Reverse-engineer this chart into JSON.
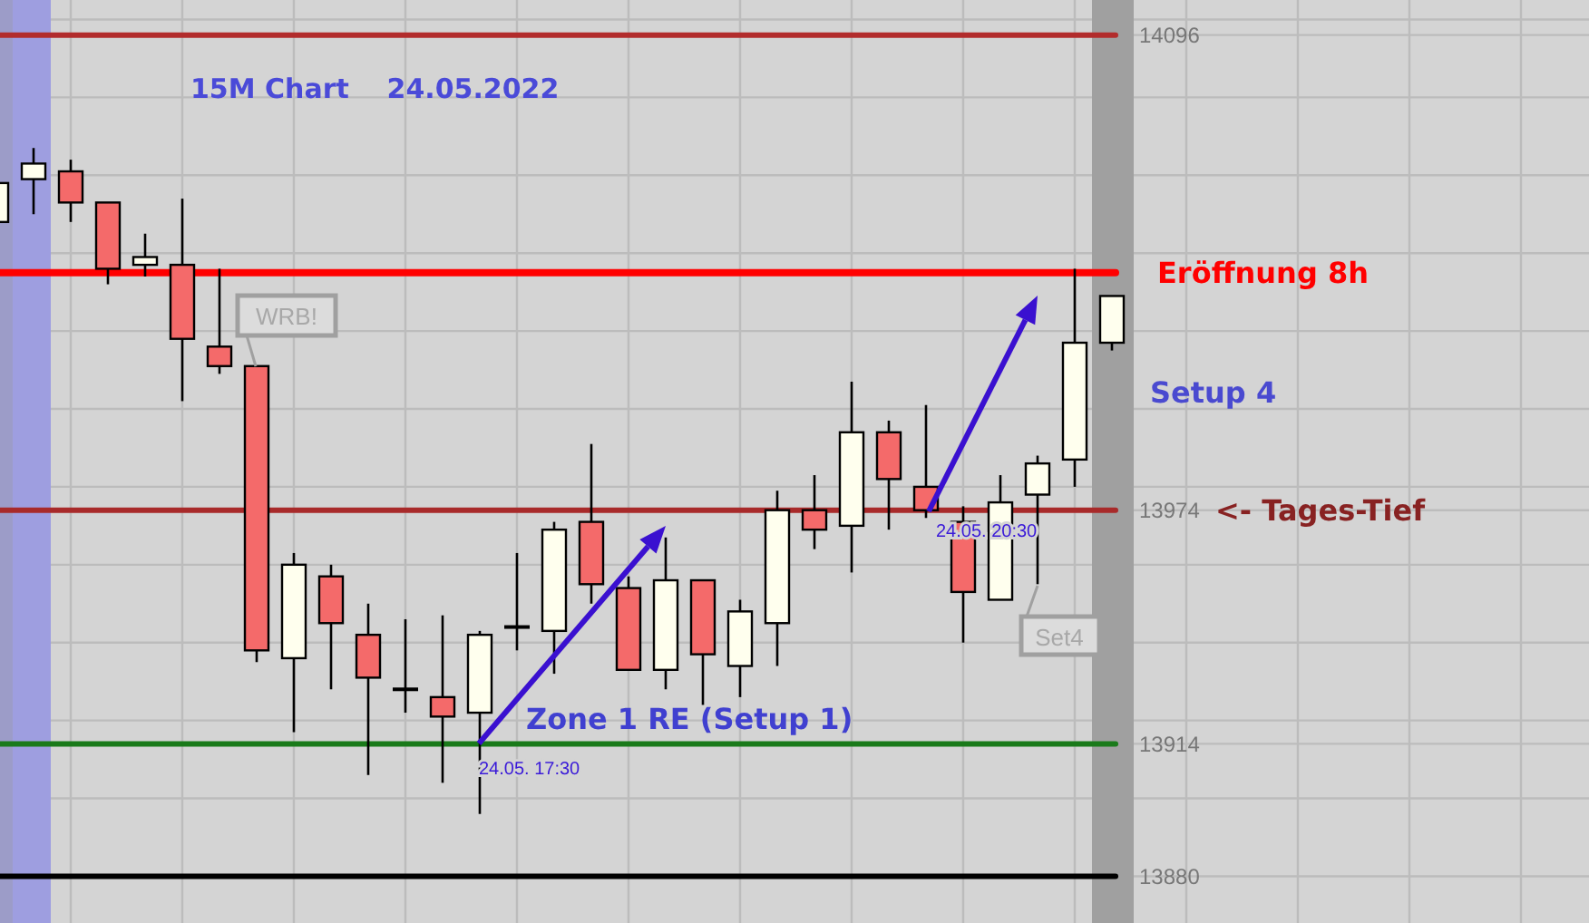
{
  "chart_data": {
    "type": "candlestick",
    "title": "15M Chart    24.05.2022",
    "categories": [
      null,
      null,
      null,
      null,
      null,
      null,
      null,
      null,
      null,
      null,
      null,
      null,
      null,
      null,
      null,
      null,
      null,
      null,
      null,
      null,
      null,
      null,
      null,
      null,
      null,
      null,
      null,
      null,
      null,
      null,
      null
    ],
    "ohlc": [
      [
        14048,
        14058,
        14048,
        14058
      ],
      [
        14059,
        14067,
        14050,
        14063
      ],
      [
        14061,
        14064,
        14048,
        14053
      ],
      [
        14053,
        14053,
        14032,
        14036
      ],
      [
        14037,
        14045,
        14034,
        14039
      ],
      [
        14037,
        14054,
        14002,
        14018
      ],
      [
        14016,
        14036,
        14009,
        14011
      ],
      [
        14011,
        14011,
        13935,
        13938
      ],
      [
        13936,
        13963,
        13917,
        13960
      ],
      [
        13957,
        13960,
        13928,
        13945
      ],
      [
        13942,
        13950,
        13906,
        13931
      ],
      [
        13928,
        13946,
        13922,
        13928
      ],
      [
        13926,
        13947,
        13904,
        13921
      ],
      [
        13922,
        13943,
        13896,
        13942
      ],
      [
        13944,
        13963,
        13938,
        13944
      ],
      [
        13943,
        13971,
        13932,
        13969
      ],
      [
        13971,
        13991,
        13950,
        13955
      ],
      [
        13954,
        13957,
        13933,
        13933
      ],
      [
        13933,
        13967,
        13928,
        13956
      ],
      [
        13956,
        13956,
        13924,
        13937
      ],
      [
        13934,
        13951,
        13926,
        13948
      ],
      [
        13945,
        13979,
        13934,
        13974
      ],
      [
        13974,
        13983,
        13964,
        13969
      ],
      [
        13970,
        14007,
        13958,
        13994
      ],
      [
        13994,
        13997,
        13969,
        13982
      ],
      [
        13980,
        14001,
        13972,
        13974
      ],
      [
        13971,
        13975,
        13940,
        13953
      ],
      [
        13951,
        13983,
        13951,
        13976
      ],
      [
        13978,
        13988,
        13955,
        13986
      ],
      [
        13987,
        14036,
        13980,
        14017
      ],
      [
        14017,
        14029,
        14015,
        14029
      ]
    ],
    "colors": [
      "#ffffee",
      "#ffffee",
      "#f46a6a",
      "#f46a6a",
      "#ffffee",
      "#f46a6a",
      "#f46a6a",
      "#f46a6a",
      "#ffffee",
      "#f46a6a",
      "#f46a6a",
      "#000000",
      "#f46a6a",
      "#ffffee",
      "#000000",
      "#ffffee",
      "#f46a6a",
      "#f46a6a",
      "#ffffee",
      "#f46a6a",
      "#ffffee",
      "#ffffee",
      "#f46a6a",
      "#ffffee",
      "#f46a6a",
      "#f46a6a",
      "#f46a6a",
      "#ffffee",
      "#ffffee",
      "#ffffee",
      "#ffffee"
    ],
    "ylim": [
      13868,
      14105
    ],
    "yticks": [
      13880,
      {
        "value": 13900,
        "label": null
      },
      13914,
      {
        "value": 13920,
        "label": null
      },
      {
        "value": 13940,
        "label": null
      },
      {
        "value": 13960,
        "label": null
      },
      13974,
      {
        "value": 13980,
        "label": null
      },
      {
        "value": 14000,
        "label": null
      },
      {
        "value": 14020,
        "label": null
      },
      {
        "value": 14040,
        "label": null
      },
      {
        "value": 14060,
        "label": null
      },
      {
        "value": 14080,
        "label": null
      },
      14096,
      {
        "value": 14100,
        "label": null
      }
    ],
    "tick_labels": "y",
    "grid": true,
    "ref_lines": [
      {
        "axis": "y",
        "value": 14096,
        "color": "#b22c2c"
      },
      {
        "axis": "y",
        "value": 14035,
        "color": "#ff0000",
        "label": "Eröffnung 8h"
      },
      {
        "axis": "y",
        "value": 13974,
        "color": "#a82a2a",
        "label": "<- Tages-Tief"
      },
      {
        "axis": "y",
        "value": 13914,
        "color": "#1a7a1a"
      },
      {
        "axis": "y",
        "value": 13880,
        "color": "#000000"
      }
    ],
    "annotations": [
      "Zone 1 RE (Setup 1)",
      "Setup 4",
      "WRB!",
      "Set4",
      "24.05. 17:30",
      "24.05. 20:30"
    ]
  }
}
